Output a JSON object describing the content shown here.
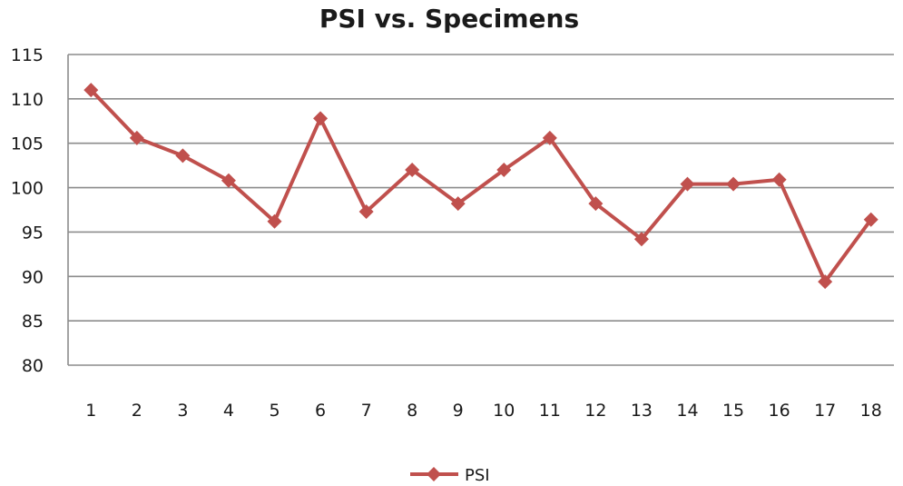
{
  "chart_data": {
    "type": "line",
    "title": "PSI vs. Specimens",
    "xlabel": "",
    "ylabel": "",
    "categories": [
      "1",
      "2",
      "3",
      "4",
      "5",
      "6",
      "7",
      "8",
      "9",
      "10",
      "11",
      "12",
      "13",
      "14",
      "15",
      "16",
      "17",
      "18"
    ],
    "ylim": [
      80,
      115
    ],
    "yticks": [
      80,
      85,
      90,
      95,
      100,
      105,
      110,
      115
    ],
    "grid": true,
    "legend_position": "bottom",
    "series": [
      {
        "name": "PSI",
        "color": "#c0504d",
        "marker": "diamond",
        "values": [
          111,
          105.6,
          103.6,
          100.8,
          96.2,
          107.8,
          97.3,
          102,
          98.2,
          102,
          105.6,
          98.2,
          94.2,
          100.4,
          100.4,
          100.9,
          89.4,
          96.4
        ]
      }
    ]
  }
}
